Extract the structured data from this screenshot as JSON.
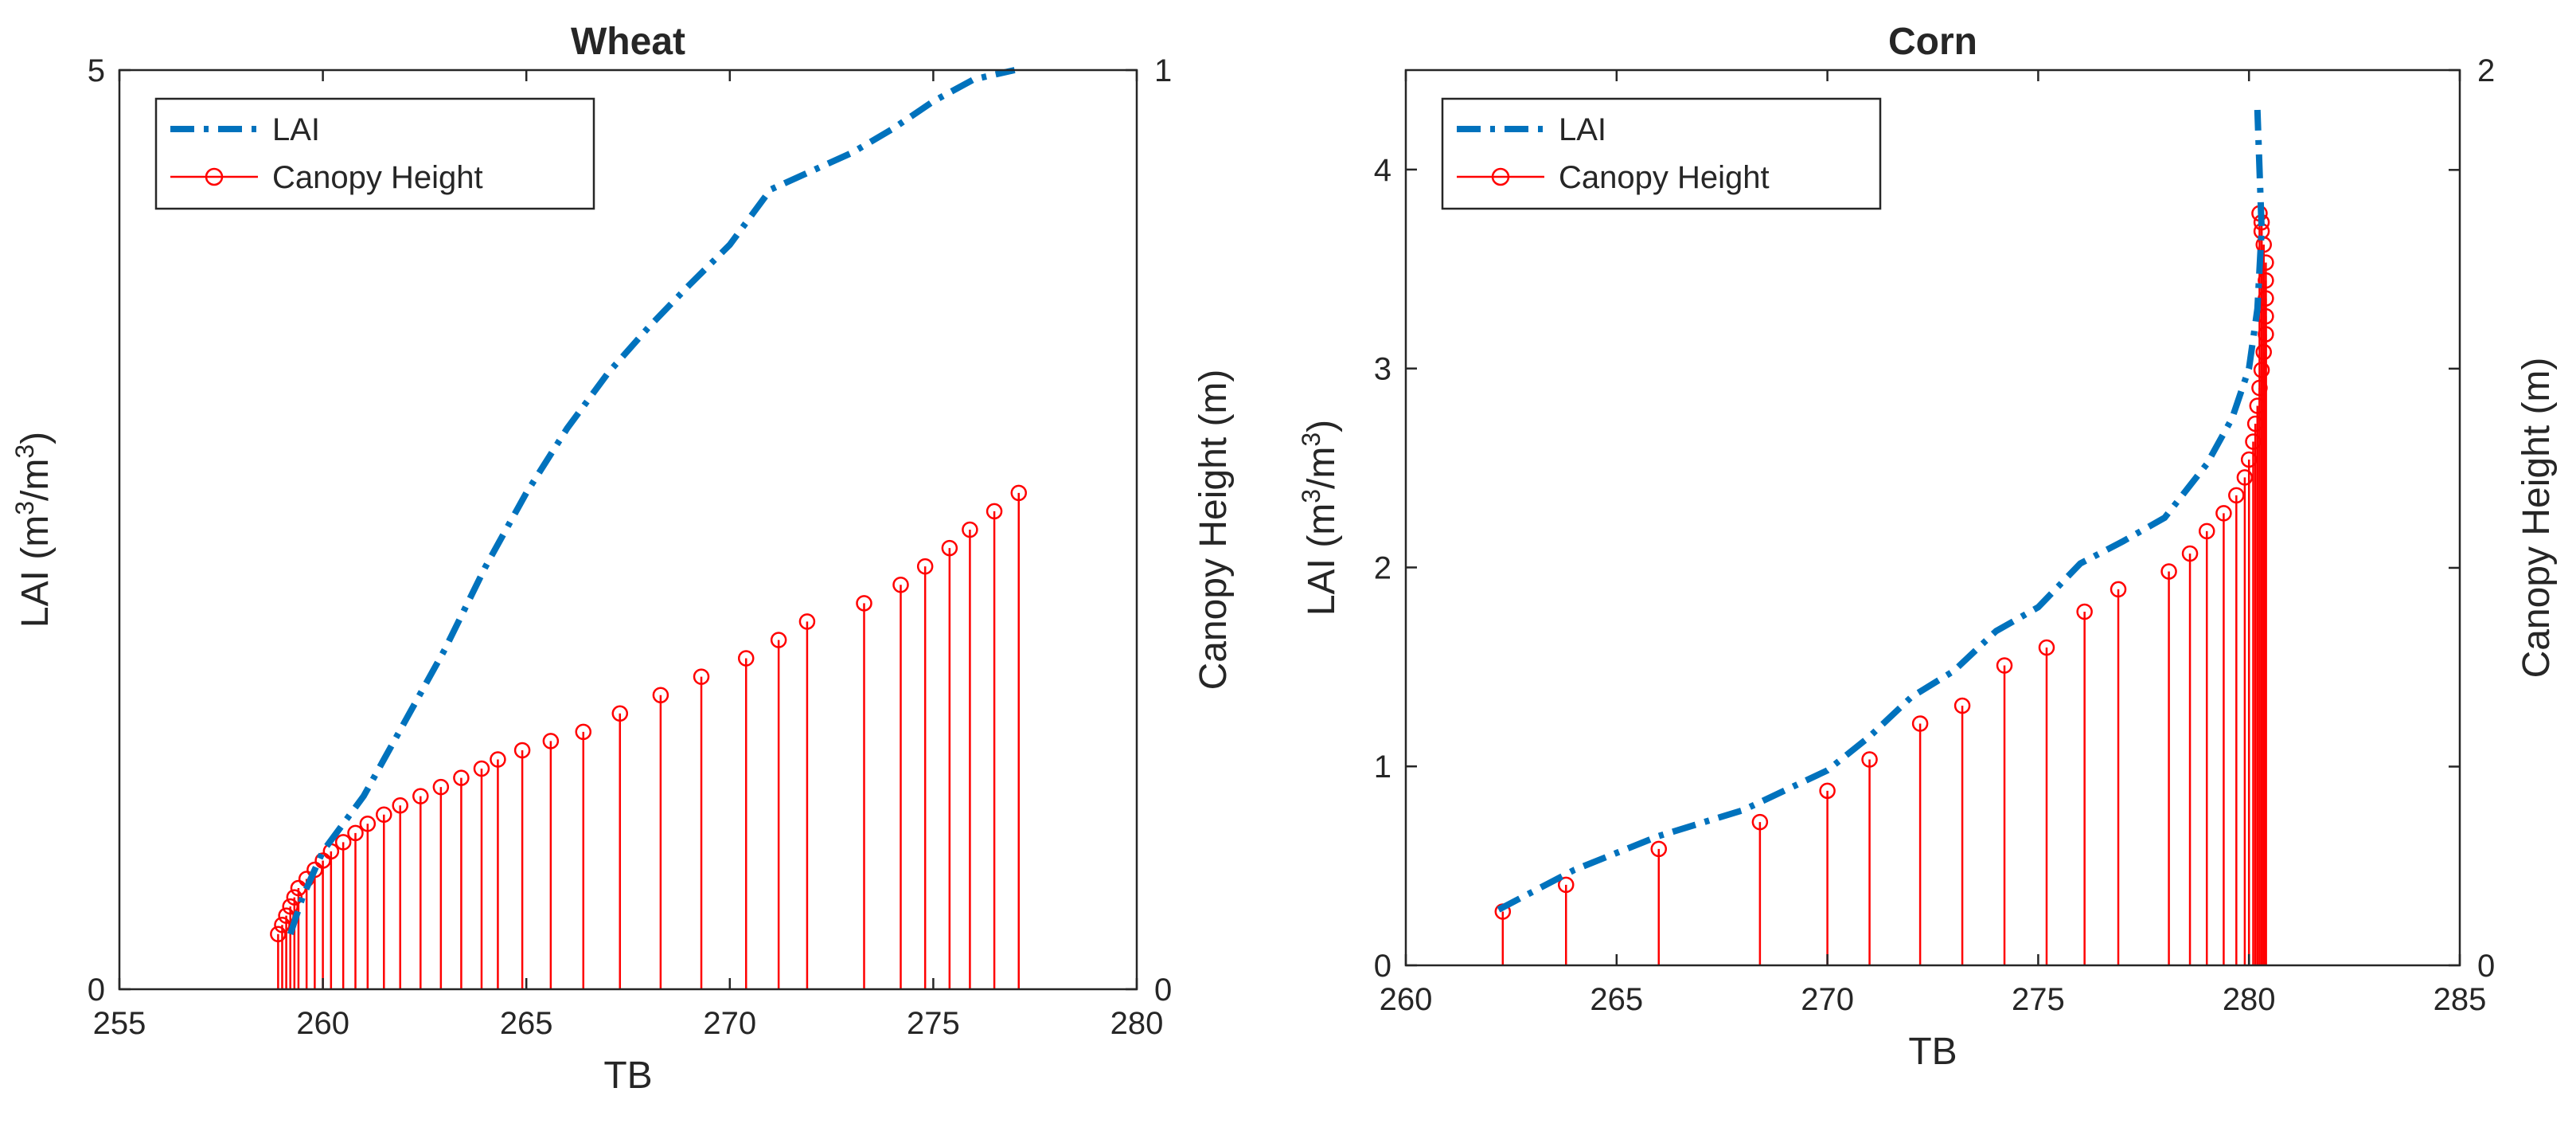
{
  "colors": {
    "lai": "#0072BD",
    "canopy": "#FF0000",
    "axis": "#262626"
  },
  "chart_data": [
    {
      "type": "line",
      "title": "Wheat",
      "xlabel": "TB",
      "ylabel_left": "LAI (m^3/m^3)",
      "ylabel_right": "Canopy Height (m)",
      "xlim": [
        255,
        280
      ],
      "ylim_left": [
        0,
        5
      ],
      "ylim_right": [
        0,
        1
      ],
      "xticks": [
        255,
        260,
        265,
        270,
        275,
        280
      ],
      "yticks_left": [
        0,
        5
      ],
      "yticks_right": [
        0,
        1
      ],
      "legend_location": "top-left",
      "series": [
        {
          "name": "LAI",
          "axis": "left",
          "style": "dash-dot",
          "x": [
            259.2,
            259.5,
            260.0,
            260.5,
            261.0,
            261.5,
            262.0,
            263.0,
            264.0,
            265.0,
            266.0,
            267.0,
            268.0,
            269.0,
            270.0,
            271.0,
            272.0,
            273.0,
            274.0,
            275.0,
            276.0,
            277.0
          ],
          "y": [
            0.3,
            0.5,
            0.75,
            0.9,
            1.05,
            1.25,
            1.45,
            1.85,
            2.3,
            2.7,
            3.05,
            3.35,
            3.6,
            3.83,
            4.05,
            4.35,
            4.45,
            4.55,
            4.68,
            4.83,
            4.95,
            5.0
          ]
        },
        {
          "name": "Canopy Height",
          "axis": "right",
          "style": "stem",
          "x": [
            258.9,
            259.0,
            259.1,
            259.2,
            259.3,
            259.4,
            259.6,
            259.8,
            260.0,
            260.2,
            260.5,
            260.8,
            261.1,
            261.5,
            261.9,
            262.4,
            262.9,
            263.4,
            263.9,
            264.3,
            264.9,
            265.6,
            266.4,
            267.3,
            268.3,
            269.3,
            270.4,
            271.2,
            271.9,
            273.3,
            274.2,
            274.8,
            275.4,
            275.9,
            276.5,
            277.1
          ],
          "y": [
            0.06,
            0.07,
            0.08,
            0.09,
            0.1,
            0.11,
            0.12,
            0.13,
            0.14,
            0.15,
            0.16,
            0.17,
            0.18,
            0.19,
            0.2,
            0.21,
            0.22,
            0.23,
            0.24,
            0.25,
            0.26,
            0.27,
            0.28,
            0.3,
            0.32,
            0.34,
            0.36,
            0.38,
            0.4,
            0.42,
            0.44,
            0.46,
            0.48,
            0.5,
            0.52,
            0.54
          ]
        }
      ]
    },
    {
      "type": "line",
      "title": "Corn",
      "xlabel": "TB",
      "ylabel_left": "LAI (m^3/m^3)",
      "ylabel_right": "Canopy Height (m)",
      "xlim": [
        260,
        285
      ],
      "ylim_left": [
        0,
        4.5
      ],
      "ylim_right": [
        0,
        2
      ],
      "xticks": [
        260,
        265,
        270,
        275,
        280,
        285
      ],
      "yticks_left": [
        0,
        1,
        2,
        3,
        4
      ],
      "yticks_right": [
        0,
        2
      ],
      "legend_location": "top-left",
      "series": [
        {
          "name": "LAI",
          "axis": "left",
          "style": "dash-dot",
          "x": [
            262.2,
            264.0,
            266.0,
            268.0,
            269.0,
            270.0,
            271.0,
            272.0,
            273.0,
            274.0,
            275.0,
            276.0,
            277.0,
            278.0,
            279.0,
            279.6,
            280.0,
            280.2,
            280.3,
            280.2
          ],
          "y": [
            0.28,
            0.48,
            0.65,
            0.78,
            0.88,
            0.98,
            1.15,
            1.35,
            1.48,
            1.68,
            1.8,
            2.02,
            2.13,
            2.25,
            2.52,
            2.75,
            3.0,
            3.3,
            3.7,
            4.3
          ]
        },
        {
          "name": "Canopy Height",
          "axis": "right",
          "style": "stem",
          "x": [
            262.3,
            263.8,
            266.0,
            268.4,
            270.0,
            271.0,
            272.2,
            273.2,
            274.2,
            275.2,
            276.1,
            276.9,
            278.1,
            278.6,
            279.0,
            279.4,
            279.7,
            279.9,
            280.0,
            280.1,
            280.15,
            280.2,
            280.25,
            280.3,
            280.35,
            280.4,
            280.4,
            280.4,
            280.4,
            280.4,
            280.35,
            280.3,
            280.3,
            280.25
          ],
          "y": [
            0.12,
            0.18,
            0.26,
            0.32,
            0.39,
            0.46,
            0.54,
            0.58,
            0.67,
            0.71,
            0.79,
            0.84,
            0.88,
            0.92,
            0.97,
            1.01,
            1.05,
            1.09,
            1.13,
            1.17,
            1.21,
            1.25,
            1.29,
            1.33,
            1.37,
            1.41,
            1.45,
            1.49,
            1.53,
            1.57,
            1.61,
            1.64,
            1.66,
            1.68
          ]
        }
      ]
    }
  ]
}
